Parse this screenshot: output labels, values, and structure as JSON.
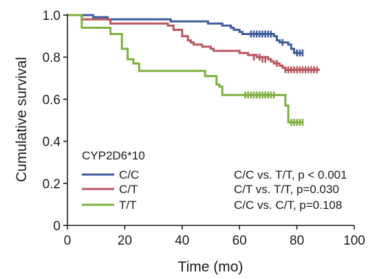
{
  "chart_data": {
    "type": "line",
    "subtype": "kaplan-meier step curve",
    "xlabel": "Time (mo)",
    "ylabel": "Cumulative survival",
    "xlim": [
      0,
      100
    ],
    "ylim": [
      0,
      1.0
    ],
    "xticks": [
      "0",
      "20",
      "40",
      "60",
      "80",
      "100"
    ],
    "yticks": [
      "0",
      "0.2",
      "0.4",
      "0.6",
      "0.8",
      "1.0"
    ],
    "grid": false,
    "legend_title": "CYP2D6*10",
    "legend_position": "bottom-left",
    "series": [
      {
        "name": "C/C",
        "color": "#3c5b9c",
        "steps": [
          [
            0,
            1.0
          ],
          [
            9,
            0.99
          ],
          [
            14,
            0.98
          ],
          [
            36,
            0.97
          ],
          [
            49,
            0.96
          ],
          [
            54,
            0.95
          ],
          [
            57,
            0.94
          ],
          [
            58,
            0.93
          ],
          [
            60,
            0.92
          ],
          [
            61,
            0.91
          ],
          [
            72,
            0.9
          ],
          [
            73,
            0.88
          ],
          [
            74,
            0.87
          ],
          [
            77,
            0.86
          ],
          [
            78,
            0.84
          ],
          [
            79,
            0.82
          ],
          [
            82,
            0.82
          ]
        ],
        "censored": [
          [
            64,
            0.91
          ],
          [
            65,
            0.91
          ],
          [
            66,
            0.91
          ],
          [
            67,
            0.91
          ],
          [
            68,
            0.91
          ],
          [
            69,
            0.91
          ],
          [
            70,
            0.91
          ],
          [
            71,
            0.91
          ],
          [
            75,
            0.87
          ],
          [
            80,
            0.82
          ],
          [
            81,
            0.82
          ],
          [
            82,
            0.82
          ]
        ]
      },
      {
        "name": "C/T",
        "color": "#b9545e",
        "steps": [
          [
            0,
            1.0
          ],
          [
            5,
            0.98
          ],
          [
            15,
            0.96
          ],
          [
            35,
            0.95
          ],
          [
            37,
            0.93
          ],
          [
            40,
            0.9
          ],
          [
            42,
            0.88
          ],
          [
            43,
            0.87
          ],
          [
            44,
            0.86
          ],
          [
            47,
            0.85
          ],
          [
            50,
            0.84
          ],
          [
            51,
            0.83
          ],
          [
            60,
            0.82
          ],
          [
            63,
            0.81
          ],
          [
            66,
            0.8
          ],
          [
            70,
            0.79
          ],
          [
            71,
            0.78
          ],
          [
            72,
            0.77
          ],
          [
            74,
            0.76
          ],
          [
            75,
            0.75
          ],
          [
            76,
            0.74
          ],
          [
            88,
            0.74
          ]
        ],
        "censored": [
          [
            65,
            0.8
          ],
          [
            67,
            0.8
          ],
          [
            68,
            0.79
          ],
          [
            69,
            0.79
          ],
          [
            73,
            0.77
          ],
          [
            76,
            0.74
          ],
          [
            77,
            0.74
          ],
          [
            78,
            0.74
          ],
          [
            79,
            0.74
          ],
          [
            80,
            0.74
          ],
          [
            81,
            0.74
          ],
          [
            82,
            0.74
          ],
          [
            83,
            0.74
          ],
          [
            84,
            0.74
          ],
          [
            85,
            0.74
          ],
          [
            86,
            0.74
          ],
          [
            87,
            0.74
          ]
        ]
      },
      {
        "name": "T/T",
        "color": "#7daf3e",
        "steps": [
          [
            0,
            1.0
          ],
          [
            5,
            0.94
          ],
          [
            15,
            0.91
          ],
          [
            19,
            0.84
          ],
          [
            21,
            0.79
          ],
          [
            23,
            0.77
          ],
          [
            25,
            0.735
          ],
          [
            48,
            0.71
          ],
          [
            52,
            0.67
          ],
          [
            53,
            0.66
          ],
          [
            54,
            0.62
          ],
          [
            76,
            0.57
          ],
          [
            77,
            0.49
          ],
          [
            82,
            0.49
          ]
        ],
        "censored": [
          [
            62,
            0.62
          ],
          [
            63,
            0.62
          ],
          [
            64,
            0.62
          ],
          [
            65,
            0.62
          ],
          [
            66,
            0.62
          ],
          [
            67,
            0.62
          ],
          [
            68,
            0.62
          ],
          [
            69,
            0.62
          ],
          [
            70,
            0.62
          ],
          [
            71,
            0.62
          ],
          [
            72,
            0.62
          ],
          [
            78,
            0.49
          ],
          [
            79,
            0.49
          ],
          [
            80,
            0.49
          ],
          [
            81,
            0.49
          ],
          [
            82,
            0.49
          ]
        ]
      }
    ],
    "annotations": [
      "C/C vs. T/T, p < 0.001",
      "C/T vs. T/T, p=0.030",
      "C/C vs. C/T, p=0.108"
    ]
  }
}
